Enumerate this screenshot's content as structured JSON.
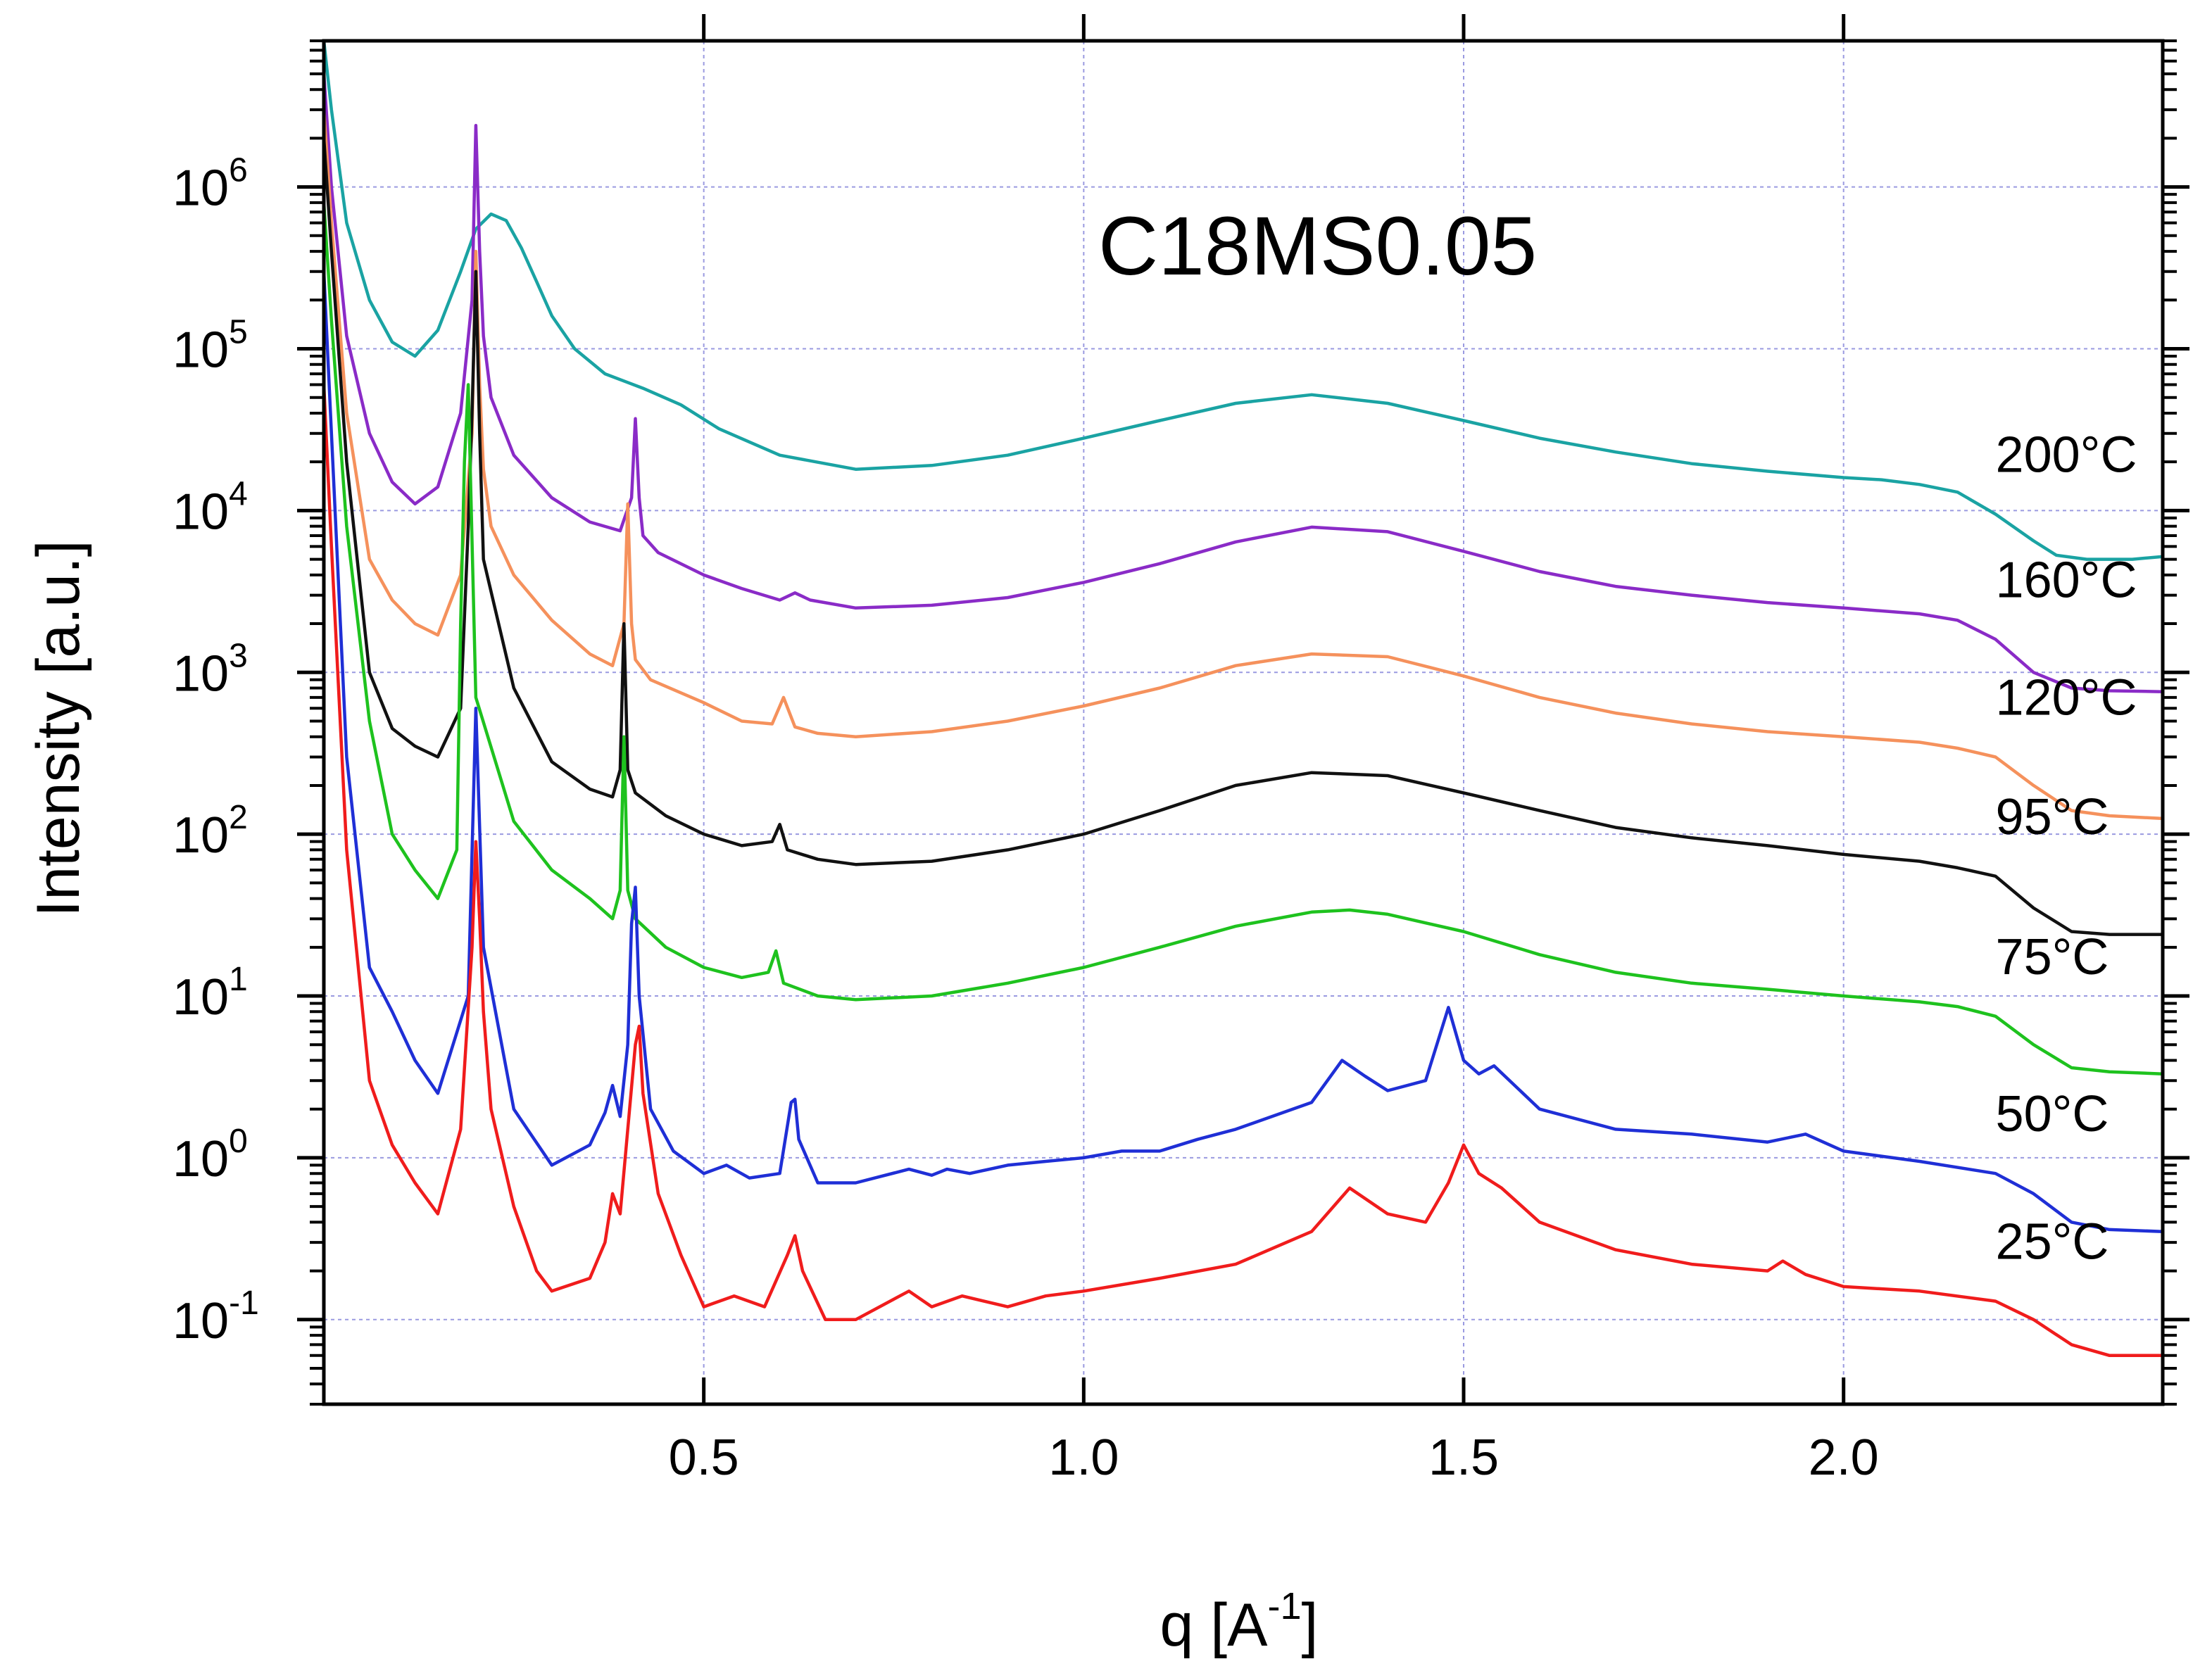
{
  "chart_data": {
    "type": "line",
    "title": "C18MS0.05",
    "xlabel": "q [A",
    "xlabel_superscript": "-1",
    "xlabel_suffix": "]",
    "ylabel": "Intensity [a.u.]",
    "xlim": [
      0.0,
      2.42
    ],
    "ylim": [
      0.03,
      8000000
    ],
    "yscale": "log",
    "grid": true,
    "x_ticks": [
      {
        "value": 0.5,
        "label": "0.5"
      },
      {
        "value": 1.0,
        "label": "1.0"
      },
      {
        "value": 1.5,
        "label": "1.5"
      },
      {
        "value": 2.0,
        "label": "2.0"
      }
    ],
    "y_ticks": [
      {
        "value": 0.1,
        "base": "10",
        "exp": "-1"
      },
      {
        "value": 1,
        "base": "10",
        "exp": "0"
      },
      {
        "value": 10,
        "base": "10",
        "exp": "1"
      },
      {
        "value": 100,
        "base": "10",
        "exp": "2"
      },
      {
        "value": 1000,
        "base": "10",
        "exp": "3"
      },
      {
        "value": 10000,
        "base": "10",
        "exp": "4"
      },
      {
        "value": 100000,
        "base": "10",
        "exp": "5"
      },
      {
        "value": 1000000,
        "base": "10",
        "exp": "6"
      }
    ],
    "series": [
      {
        "name": "200°C",
        "color": "#1aa3a3",
        "x": [
          0.0,
          0.01,
          0.03,
          0.06,
          0.09,
          0.12,
          0.15,
          0.18,
          0.2,
          0.22,
          0.24,
          0.26,
          0.28,
          0.3,
          0.33,
          0.37,
          0.42,
          0.47,
          0.52,
          0.6,
          0.7,
          0.8,
          0.9,
          1.0,
          1.1,
          1.2,
          1.3,
          1.4,
          1.5,
          1.6,
          1.7,
          1.8,
          1.9,
          2.0,
          2.05,
          2.1,
          2.15,
          2.2,
          2.25,
          2.28,
          2.32,
          2.38,
          2.42
        ],
        "y": [
          9000000,
          3000000,
          600000,
          200000,
          110000,
          90000,
          130000,
          300000,
          550000,
          680000,
          620000,
          420000,
          260000,
          160000,
          100000,
          70000,
          57000,
          45000,
          32000,
          22000,
          18000,
          19000,
          22000,
          28000,
          36000,
          46000,
          52000,
          46000,
          36000,
          28000,
          23000,
          19500,
          17500,
          16000,
          15500,
          14500,
          13000,
          9500,
          6500,
          5300,
          5000,
          5000,
          5200
        ]
      },
      {
        "name": "160°C",
        "color": "#8a2bc7",
        "x": [
          0.0,
          0.01,
          0.03,
          0.06,
          0.09,
          0.12,
          0.15,
          0.18,
          0.195,
          0.2,
          0.205,
          0.21,
          0.22,
          0.25,
          0.3,
          0.35,
          0.39,
          0.405,
          0.41,
          0.415,
          0.42,
          0.44,
          0.5,
          0.55,
          0.6,
          0.62,
          0.64,
          0.7,
          0.8,
          0.9,
          1.0,
          1.1,
          1.2,
          1.3,
          1.4,
          1.5,
          1.6,
          1.7,
          1.8,
          1.9,
          2.0,
          2.1,
          2.15,
          2.2,
          2.25,
          2.3,
          2.35,
          2.42
        ],
        "y": [
          5000000,
          1000000,
          120000,
          30000,
          15000,
          11000,
          14000,
          40000,
          200000,
          2400000,
          400000,
          120000,
          50000,
          22000,
          12000,
          8500,
          7500,
          12000,
          37000,
          12000,
          7000,
          5500,
          4000,
          3300,
          2800,
          3100,
          2800,
          2500,
          2600,
          2900,
          3600,
          4700,
          6400,
          7900,
          7400,
          5600,
          4200,
          3400,
          3000,
          2700,
          2500,
          2300,
          2100,
          1600,
          1000,
          800,
          770,
          760
        ]
      },
      {
        "name": "120°C",
        "color": "#f5915c",
        "x": [
          0.0,
          0.01,
          0.03,
          0.06,
          0.09,
          0.12,
          0.15,
          0.18,
          0.195,
          0.2,
          0.205,
          0.21,
          0.22,
          0.25,
          0.3,
          0.35,
          0.38,
          0.395,
          0.4,
          0.405,
          0.41,
          0.43,
          0.5,
          0.55,
          0.59,
          0.605,
          0.62,
          0.65,
          0.7,
          0.8,
          0.9,
          1.0,
          1.1,
          1.2,
          1.3,
          1.4,
          1.5,
          1.6,
          1.7,
          1.8,
          1.9,
          2.0,
          2.1,
          2.15,
          2.2,
          2.25,
          2.3,
          2.35,
          2.42
        ],
        "y": [
          3000000,
          600000,
          40000,
          5000,
          2800,
          2000,
          1700,
          4000,
          30000,
          400000,
          60000,
          18000,
          8000,
          4000,
          2100,
          1300,
          1100,
          2000,
          11000,
          2000,
          1200,
          900,
          650,
          500,
          480,
          700,
          460,
          420,
          400,
          430,
          500,
          620,
          800,
          1100,
          1300,
          1250,
          950,
          700,
          560,
          480,
          430,
          400,
          370,
          340,
          300,
          200,
          140,
          130,
          125
        ]
      },
      {
        "name": "95°C",
        "color": "#111111",
        "x": [
          0.0,
          0.01,
          0.03,
          0.06,
          0.09,
          0.12,
          0.15,
          0.18,
          0.19,
          0.195,
          0.2,
          0.205,
          0.21,
          0.25,
          0.3,
          0.35,
          0.38,
          0.39,
          0.395,
          0.4,
          0.41,
          0.45,
          0.5,
          0.55,
          0.59,
          0.6,
          0.61,
          0.65,
          0.7,
          0.8,
          0.9,
          1.0,
          1.1,
          1.2,
          1.3,
          1.4,
          1.5,
          1.6,
          1.7,
          1.8,
          1.9,
          2.0,
          2.1,
          2.15,
          2.2,
          2.25,
          2.3,
          2.35,
          2.42
        ],
        "y": [
          2000000,
          400000,
          20000,
          1000,
          450,
          350,
          300,
          600,
          8000,
          40000,
          300000,
          30000,
          5000,
          800,
          280,
          190,
          170,
          250,
          2000,
          250,
          180,
          130,
          100,
          85,
          90,
          115,
          80,
          70,
          65,
          68,
          80,
          100,
          140,
          200,
          240,
          230,
          180,
          140,
          110,
          95,
          85,
          75,
          68,
          62,
          55,
          35,
          25,
          24,
          24
        ]
      },
      {
        "name": "75°C",
        "color": "#1ec21e",
        "x": [
          0.0,
          0.01,
          0.03,
          0.06,
          0.09,
          0.12,
          0.15,
          0.175,
          0.18,
          0.185,
          0.19,
          0.2,
          0.25,
          0.3,
          0.35,
          0.38,
          0.39,
          0.395,
          0.4,
          0.41,
          0.45,
          0.5,
          0.55,
          0.585,
          0.595,
          0.605,
          0.65,
          0.7,
          0.8,
          0.9,
          1.0,
          1.1,
          1.2,
          1.3,
          1.35,
          1.4,
          1.5,
          1.6,
          1.7,
          1.8,
          1.9,
          2.0,
          2.1,
          2.15,
          2.2,
          2.25,
          2.3,
          2.35,
          2.42
        ],
        "y": [
          800000,
          150000,
          8000,
          500,
          100,
          60,
          40,
          80,
          2000,
          20000,
          60000,
          700,
          120,
          60,
          40,
          30,
          45,
          400,
          45,
          30,
          20,
          15,
          13,
          14,
          19,
          12,
          10,
          9.5,
          10,
          12,
          15,
          20,
          27,
          33,
          34,
          32,
          25,
          18,
          14,
          12,
          11,
          10,
          9.2,
          8.6,
          7.5,
          5,
          3.6,
          3.4,
          3.3
        ]
      },
      {
        "name": "50°C",
        "color": "#1f2fd6",
        "x": [
          0.0,
          0.01,
          0.03,
          0.06,
          0.09,
          0.12,
          0.15,
          0.19,
          0.2,
          0.21,
          0.25,
          0.3,
          0.35,
          0.37,
          0.38,
          0.39,
          0.4,
          0.405,
          0.41,
          0.415,
          0.43,
          0.46,
          0.5,
          0.53,
          0.56,
          0.6,
          0.615,
          0.62,
          0.625,
          0.65,
          0.7,
          0.77,
          0.8,
          0.82,
          0.85,
          0.9,
          0.95,
          1.0,
          1.05,
          1.1,
          1.15,
          1.2,
          1.3,
          1.34,
          1.37,
          1.4,
          1.45,
          1.48,
          1.5,
          1.52,
          1.54,
          1.6,
          1.7,
          1.8,
          1.9,
          1.95,
          2.0,
          2.1,
          2.2,
          2.25,
          2.3,
          2.35,
          2.42
        ],
        "y": [
          300000,
          30000,
          300,
          15,
          8,
          4,
          2.5,
          10,
          600,
          20,
          2,
          0.9,
          1.2,
          1.9,
          2.8,
          1.8,
          5,
          28,
          47,
          10,
          2,
          1.1,
          0.8,
          0.9,
          0.75,
          0.8,
          2.2,
          2.3,
          1.3,
          0.7,
          0.7,
          0.85,
          0.78,
          0.85,
          0.8,
          0.9,
          0.95,
          1,
          1.1,
          1.1,
          1.3,
          1.5,
          2.2,
          4,
          3.2,
          2.6,
          3.0,
          8.5,
          4,
          3.3,
          3.7,
          2.0,
          1.5,
          1.4,
          1.25,
          1.4,
          1.1,
          0.95,
          0.8,
          0.6,
          0.4,
          0.36,
          0.35
        ]
      },
      {
        "name": "25°C",
        "color": "#f01c1c",
        "x": [
          0.0,
          0.01,
          0.03,
          0.06,
          0.09,
          0.12,
          0.15,
          0.18,
          0.195,
          0.2,
          0.205,
          0.21,
          0.22,
          0.25,
          0.28,
          0.3,
          0.35,
          0.37,
          0.38,
          0.39,
          0.4,
          0.41,
          0.415,
          0.42,
          0.44,
          0.47,
          0.5,
          0.54,
          0.58,
          0.61,
          0.62,
          0.63,
          0.66,
          0.7,
          0.77,
          0.8,
          0.84,
          0.9,
          0.95,
          1.0,
          1.1,
          1.2,
          1.3,
          1.35,
          1.4,
          1.45,
          1.48,
          1.5,
          1.52,
          1.55,
          1.6,
          1.7,
          1.8,
          1.9,
          1.92,
          1.95,
          2.0,
          2.1,
          2.2,
          2.25,
          2.3,
          2.35,
          2.42
        ],
        "y": [
          60000,
          6000,
          80,
          3,
          1.2,
          0.7,
          0.45,
          1.5,
          20,
          90,
          30,
          8,
          2,
          0.5,
          0.2,
          0.15,
          0.18,
          0.3,
          0.6,
          0.45,
          1.5,
          5,
          6.5,
          2.5,
          0.6,
          0.25,
          0.12,
          0.14,
          0.12,
          0.25,
          0.33,
          0.2,
          0.1,
          0.1,
          0.15,
          0.12,
          0.14,
          0.12,
          0.14,
          0.15,
          0.18,
          0.22,
          0.35,
          0.65,
          0.45,
          0.4,
          0.7,
          1.2,
          0.8,
          0.65,
          0.4,
          0.27,
          0.22,
          0.2,
          0.23,
          0.19,
          0.16,
          0.15,
          0.13,
          0.1,
          0.07,
          0.06,
          0.06
        ]
      }
    ]
  }
}
